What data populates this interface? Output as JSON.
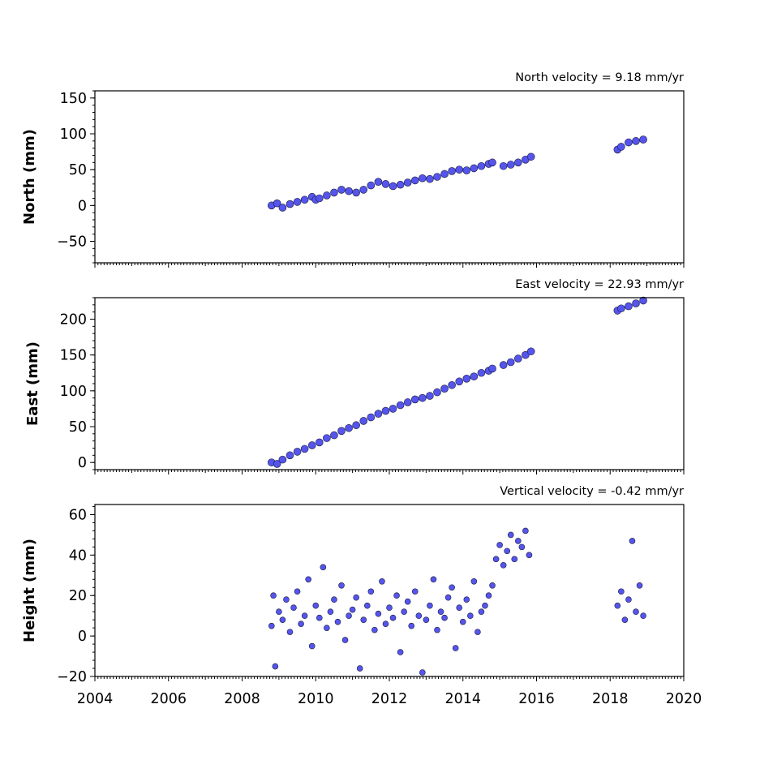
{
  "chart_data": [
    {
      "type": "scatter",
      "title": "North velocity = 9.18 mm/yr",
      "ylabel": "North (mm)",
      "xlim": [
        2004,
        2020
      ],
      "ylim": [
        -80,
        160
      ],
      "yticks": [
        -50,
        0,
        50,
        100,
        150
      ],
      "ytick_labels": [
        "−50",
        "0",
        "50",
        "100",
        "150"
      ],
      "point_color": "#5555ee",
      "series": [
        {
          "x": [
            2008.8,
            2008.95,
            2009.1,
            2009.3,
            2009.5,
            2009.7,
            2009.9,
            2010.0,
            2010.1,
            2010.3,
            2010.5,
            2010.7,
            2010.9,
            2011.1,
            2011.3,
            2011.5,
            2011.7,
            2011.9,
            2012.1,
            2012.3,
            2012.5,
            2012.7,
            2012.9,
            2013.1,
            2013.3,
            2013.5,
            2013.7,
            2013.9,
            2014.1,
            2014.3,
            2014.5,
            2014.7,
            2014.8,
            2015.1,
            2015.3,
            2015.5,
            2015.7,
            2015.85,
            2018.2,
            2018.3,
            2018.5,
            2018.7,
            2018.9
          ],
          "y": [
            0,
            3,
            -3,
            2,
            5,
            8,
            12,
            8,
            10,
            14,
            18,
            22,
            20,
            18,
            22,
            28,
            33,
            30,
            27,
            29,
            32,
            35,
            38,
            37,
            40,
            44,
            48,
            50,
            49,
            52,
            55,
            58,
            60,
            55,
            57,
            60,
            64,
            68,
            78,
            82,
            88,
            90,
            92
          ]
        }
      ]
    },
    {
      "type": "scatter",
      "title": "East velocity = 22.93 mm/yr",
      "ylabel": "East (mm)",
      "xlim": [
        2004,
        2020
      ],
      "ylim": [
        -10,
        230
      ],
      "yticks": [
        0,
        50,
        100,
        150,
        200
      ],
      "ytick_labels": [
        "0",
        "50",
        "100",
        "150",
        "200"
      ],
      "point_color": "#5555ee",
      "series": [
        {
          "x": [
            2008.8,
            2008.95,
            2009.1,
            2009.3,
            2009.5,
            2009.7,
            2009.9,
            2010.1,
            2010.3,
            2010.5,
            2010.7,
            2010.9,
            2011.1,
            2011.3,
            2011.5,
            2011.7,
            2011.9,
            2012.1,
            2012.3,
            2012.5,
            2012.7,
            2012.9,
            2013.1,
            2013.3,
            2013.5,
            2013.7,
            2013.9,
            2014.1,
            2014.3,
            2014.5,
            2014.7,
            2014.8,
            2015.1,
            2015.3,
            2015.5,
            2015.7,
            2015.85,
            2018.2,
            2018.3,
            2018.5,
            2018.7,
            2018.9
          ],
          "y": [
            0,
            -2,
            4,
            10,
            15,
            19,
            24,
            28,
            34,
            38,
            44,
            48,
            52,
            58,
            63,
            68,
            72,
            75,
            80,
            84,
            88,
            90,
            93,
            98,
            103,
            108,
            113,
            117,
            120,
            125,
            128,
            131,
            136,
            140,
            145,
            150,
            155,
            212,
            215,
            218,
            222,
            226
          ]
        }
      ]
    },
    {
      "type": "scatter",
      "title": "Vertical velocity = -0.42 mm/yr",
      "ylabel": "Height (mm)",
      "xlim": [
        2004,
        2020
      ],
      "ylim": [
        -20,
        65
      ],
      "yticks": [
        -20,
        0,
        20,
        40,
        60
      ],
      "ytick_labels": [
        "−20",
        "0",
        "20",
        "40",
        "60"
      ],
      "xticks": [
        2004,
        2006,
        2008,
        2010,
        2012,
        2014,
        2016,
        2018,
        2020
      ],
      "xtick_labels": [
        "2004",
        "2006",
        "2008",
        "2010",
        "2012",
        "2014",
        "2016",
        "2018",
        "2020"
      ],
      "point_color": "#5555ee",
      "series": [
        {
          "x": [
            2008.8,
            2008.85,
            2008.9,
            2009.0,
            2009.1,
            2009.2,
            2009.3,
            2009.4,
            2009.5,
            2009.6,
            2009.7,
            2009.8,
            2009.9,
            2010.0,
            2010.1,
            2010.2,
            2010.3,
            2010.4,
            2010.5,
            2010.6,
            2010.7,
            2010.8,
            2010.9,
            2011.0,
            2011.1,
            2011.2,
            2011.3,
            2011.4,
            2011.5,
            2011.6,
            2011.7,
            2011.8,
            2011.9,
            2012.0,
            2012.1,
            2012.2,
            2012.3,
            2012.4,
            2012.5,
            2012.6,
            2012.7,
            2012.8,
            2012.9,
            2013.0,
            2013.1,
            2013.2,
            2013.3,
            2013.4,
            2013.5,
            2013.6,
            2013.7,
            2013.8,
            2013.9,
            2014.0,
            2014.1,
            2014.2,
            2014.3,
            2014.4,
            2014.5,
            2014.6,
            2014.7,
            2014.8,
            2014.9,
            2015.0,
            2015.1,
            2015.2,
            2015.3,
            2015.4,
            2015.5,
            2015.6,
            2015.7,
            2015.8,
            2018.2,
            2018.3,
            2018.4,
            2018.5,
            2018.6,
            2018.7,
            2018.8,
            2018.9
          ],
          "y": [
            5,
            20,
            -15,
            12,
            8,
            18,
            2,
            14,
            22,
            6,
            10,
            28,
            -5,
            15,
            9,
            34,
            4,
            12,
            18,
            7,
            25,
            -2,
            10,
            13,
            19,
            -16,
            8,
            15,
            22,
            3,
            11,
            27,
            6,
            14,
            9,
            20,
            -8,
            12,
            17,
            5,
            22,
            10,
            -18,
            8,
            15,
            28,
            3,
            12,
            9,
            19,
            24,
            -6,
            14,
            7,
            18,
            10,
            27,
            2,
            12,
            15,
            20,
            25,
            38,
            45,
            35,
            42,
            50,
            38,
            47,
            44,
            52,
            40,
            15,
            22,
            8,
            18,
            47,
            12,
            25,
            10
          ]
        }
      ]
    }
  ]
}
